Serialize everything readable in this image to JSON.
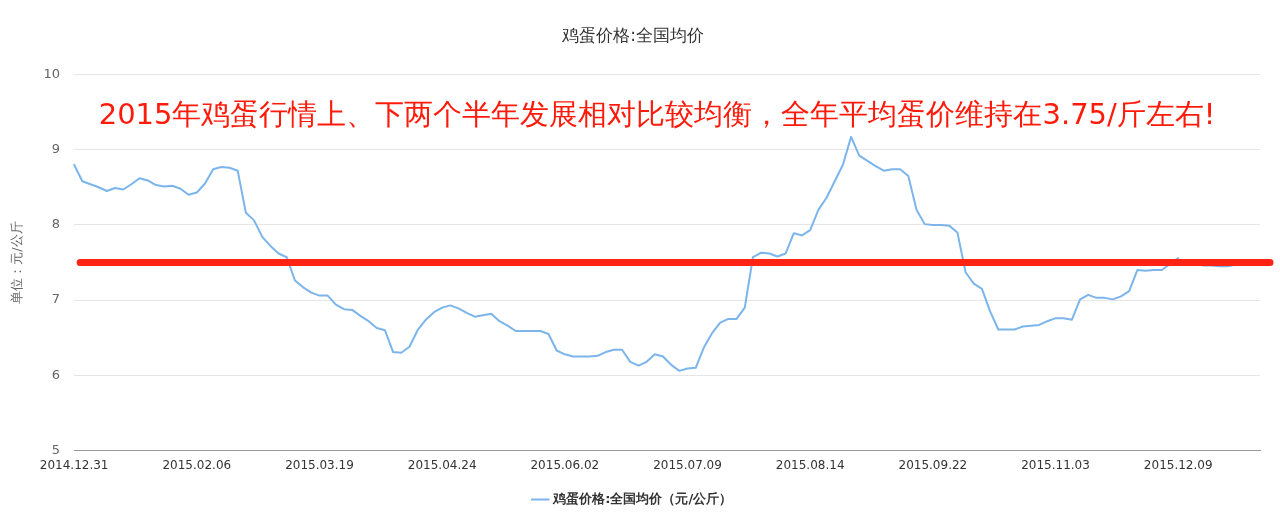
{
  "chart_data": {
    "type": "line",
    "title": "鸡蛋价格:全国均价",
    "ylabel": "单位：元/公斤",
    "annotations": [
      "2015年鸡蛋行情上、下两个半年发展相对比较均衡，全年平均蛋价维持在3.75/斤左右!"
    ],
    "categories": [
      "2014.12.31",
      null,
      null,
      null,
      null,
      null,
      null,
      null,
      null,
      null,
      null,
      null,
      null,
      null,
      null,
      "2015.02.06",
      null,
      null,
      null,
      null,
      null,
      null,
      null,
      null,
      null,
      null,
      null,
      null,
      null,
      null,
      "2015.03.19",
      null,
      null,
      null,
      null,
      null,
      null,
      null,
      null,
      null,
      null,
      null,
      null,
      null,
      null,
      "2015.04.24",
      null,
      null,
      null,
      null,
      null,
      null,
      null,
      null,
      null,
      null,
      null,
      null,
      null,
      null,
      "2015.06.02",
      null,
      null,
      null,
      null,
      null,
      null,
      null,
      null,
      null,
      null,
      null,
      null,
      null,
      null,
      "2015.07.09",
      null,
      null,
      null,
      null,
      null,
      null,
      null,
      null,
      null,
      null,
      null,
      null,
      null,
      null,
      "2015.08.14",
      null,
      null,
      null,
      null,
      null,
      null,
      null,
      null,
      null,
      null,
      null,
      null,
      null,
      null,
      "2015.09.22",
      null,
      null,
      null,
      null,
      null,
      null,
      null,
      null,
      null,
      null,
      null,
      null,
      null,
      null,
      "2015.11.03",
      null,
      null,
      null,
      null,
      null,
      null,
      null,
      null,
      null,
      null,
      null,
      null,
      null,
      null,
      "2015.12.09",
      null,
      null,
      null,
      null,
      null,
      null,
      null,
      null,
      null,
      null
    ],
    "series": [
      {
        "name": "鸡蛋价格:全国均价（元/公斤）",
        "color": "#7cb5ec",
        "values": [
          8.8,
          8.58,
          8.54,
          8.5,
          8.45,
          8.49,
          8.47,
          8.54,
          8.62,
          8.59,
          8.53,
          8.51,
          8.52,
          8.48,
          8.4,
          8.43,
          8.55,
          8.74,
          8.77,
          8.76,
          8.72,
          8.16,
          8.06,
          7.84,
          7.72,
          7.62,
          7.57,
          7.26,
          7.17,
          7.1,
          7.06,
          7.06,
          6.94,
          6.88,
          6.87,
          6.79,
          6.72,
          6.63,
          6.6,
          6.31,
          6.3,
          6.38,
          6.6,
          6.74,
          6.84,
          6.9,
          6.93,
          6.89,
          6.83,
          6.78,
          6.8,
          6.82,
          6.72,
          6.66,
          6.59,
          6.59,
          6.59,
          6.59,
          6.55,
          6.33,
          6.28,
          6.25,
          6.25,
          6.25,
          6.26,
          6.31,
          6.34,
          6.34,
          6.18,
          6.13,
          6.18,
          6.28,
          6.25,
          6.14,
          6.06,
          6.09,
          6.1,
          6.37,
          6.56,
          6.7,
          6.75,
          6.75,
          6.9,
          7.57,
          7.63,
          7.62,
          7.58,
          7.62,
          7.89,
          7.86,
          7.93,
          8.2,
          8.36,
          8.58,
          8.8,
          9.17,
          8.92,
          8.85,
          8.78,
          8.72,
          8.74,
          8.74,
          8.65,
          8.2,
          8.01,
          8.0,
          8.0,
          7.99,
          7.9,
          7.37,
          7.22,
          7.15,
          6.85,
          6.61,
          6.61,
          6.61,
          6.65,
          6.66,
          6.67,
          6.72,
          6.76,
          6.76,
          6.74,
          7.01,
          7.07,
          7.03,
          7.03,
          7.01,
          7.05,
          7.12,
          7.4,
          7.39,
          7.4,
          7.4,
          7.48,
          7.56,
          null,
          null,
          7.46,
          7.46,
          7.45,
          7.45,
          7.47,
          null,
          null,
          null
        ]
      }
    ],
    "ylim": [
      5,
      10
    ],
    "yticks": [
      5,
      6,
      7,
      8,
      9,
      10
    ],
    "grid": "y",
    "legend": "bottom",
    "marker": "none",
    "line_style": "solid",
    "ref_lines": [
      {
        "axis": "y",
        "value": 7.5,
        "color": "#ff2314"
      }
    ]
  }
}
